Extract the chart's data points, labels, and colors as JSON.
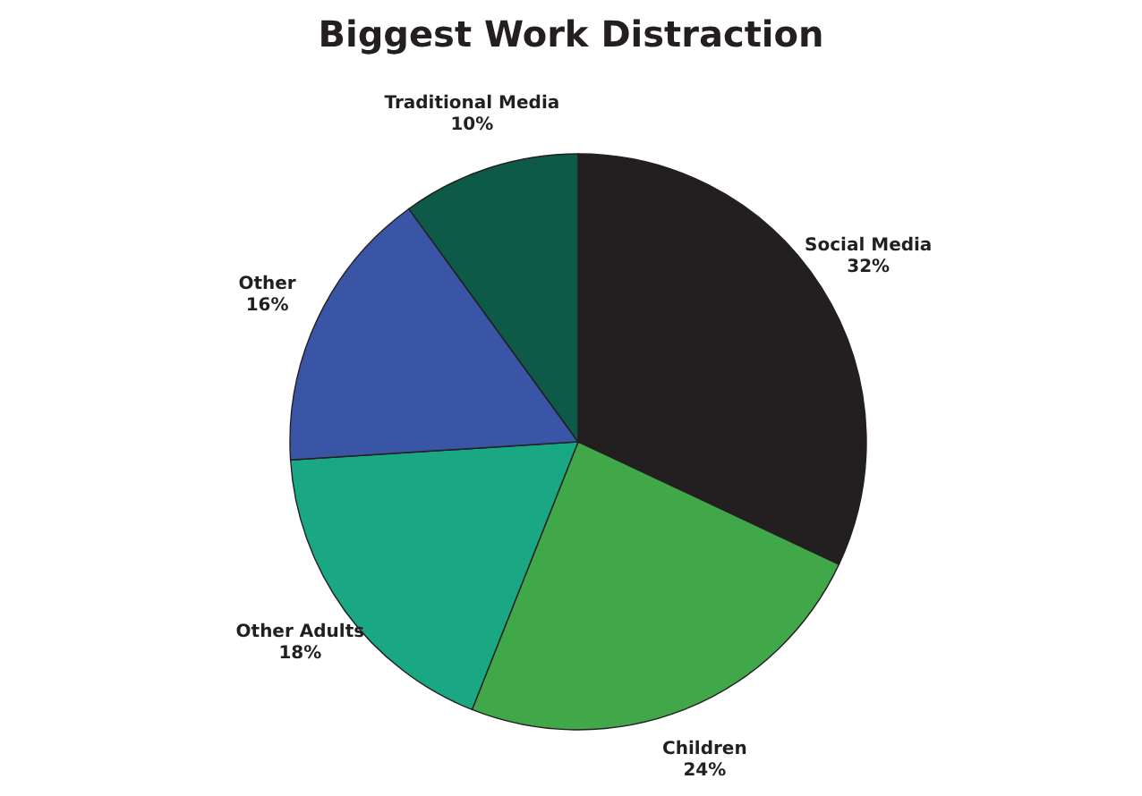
{
  "chart_data": {
    "type": "pie",
    "title": "Biggest Work Distraction",
    "categories": [
      "Social Media",
      "Children",
      "Other Adults",
      "Other",
      "Traditional Media"
    ],
    "values": [
      32,
      24,
      18,
      16,
      10
    ],
    "value_labels": [
      "32%",
      "24%",
      "18%",
      "16%",
      "10%"
    ],
    "colors": [
      "#231f20",
      "#41a84a",
      "#1aa784",
      "#3a54a6",
      "#0e5a49"
    ],
    "legend": false
  }
}
